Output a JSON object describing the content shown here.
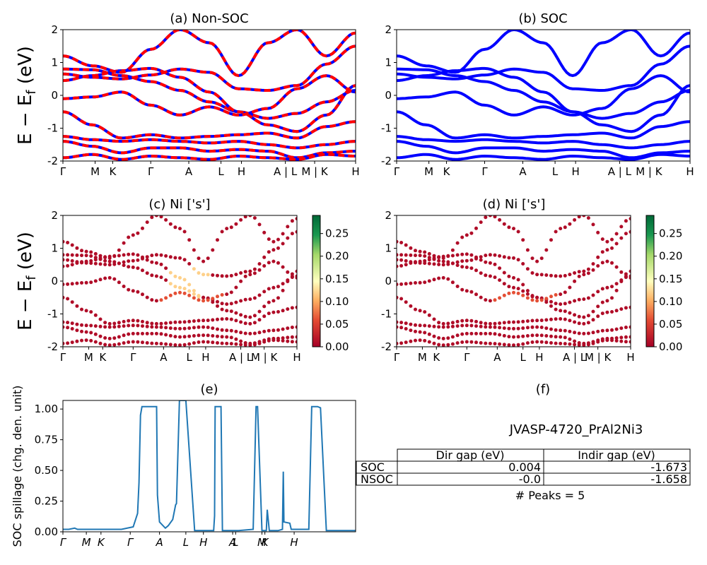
{
  "chart_data": [
    {
      "id": "a",
      "type": "line",
      "title": "(a) Non-SOC",
      "ylabel": "E − E_f (eV)",
      "ylim": [
        -2,
        2
      ],
      "yticks": [
        -2,
        -1,
        0,
        1,
        2
      ],
      "kpath_labels": [
        "Γ",
        "M",
        "K",
        "Γ",
        "A",
        "L",
        "H",
        "A | L",
        "M | K",
        "H"
      ],
      "colors": {
        "spin_up": "#0000ff",
        "spin_down": "#ff0000"
      },
      "series": [
        {
          "name": "band-1",
          "x": [
            0,
            0.1,
            0.2,
            0.3,
            0.4,
            0.5,
            0.6,
            0.7,
            0.8,
            0.9,
            1.0
          ],
          "y": [
            0.8,
            0.78,
            0.6,
            0.42,
            0.15,
            -0.2,
            -0.5,
            -0.7,
            -0.55,
            -0.2,
            0.15
          ]
        },
        {
          "name": "band-2",
          "x": [
            0,
            0.1,
            0.2,
            0.3,
            0.4,
            0.5,
            0.6,
            0.7,
            0.8,
            0.9,
            1.0
          ],
          "y": [
            0.45,
            0.6,
            0.75,
            0.82,
            0.55,
            0.1,
            -0.5,
            -0.9,
            -1.1,
            -0.6,
            0.3
          ]
        },
        {
          "name": "band-3",
          "x": [
            0,
            0.1,
            0.2,
            0.3,
            0.4,
            0.5,
            0.6,
            0.7,
            0.8,
            0.9,
            1.0
          ],
          "y": [
            -0.5,
            -0.9,
            -1.3,
            -1.2,
            -1.3,
            -1.25,
            -1.2,
            -1.15,
            -1.3,
            -0.95,
            -0.8
          ]
        },
        {
          "name": "band-4",
          "x": [
            0,
            0.1,
            0.2,
            0.3,
            0.4,
            0.5,
            0.6,
            0.7,
            0.8,
            0.9,
            1.0
          ],
          "y": [
            -1.25,
            -1.35,
            -1.4,
            -1.35,
            -1.4,
            -1.45,
            -1.4,
            -1.5,
            -1.6,
            -1.5,
            -1.4
          ]
        },
        {
          "name": "band-5",
          "x": [
            0,
            0.1,
            0.2,
            0.3,
            0.4,
            0.5,
            0.6,
            0.7,
            0.8,
            0.9,
            1.0
          ],
          "y": [
            -1.4,
            -1.55,
            -1.75,
            -1.6,
            -1.6,
            -1.7,
            -1.65,
            -1.7,
            -1.9,
            -1.75,
            -1.7
          ]
        },
        {
          "name": "band-6",
          "x": [
            0,
            0.1,
            0.2,
            0.3,
            0.4,
            0.5,
            0.6,
            0.7,
            0.8,
            0.9,
            1.0
          ],
          "y": [
            -1.9,
            -1.8,
            -1.95,
            -1.85,
            -1.9,
            -1.95,
            -1.85,
            -1.9,
            -1.95,
            -1.8,
            -1.85
          ]
        },
        {
          "name": "band-7",
          "x": [
            0,
            0.1,
            0.2,
            0.3,
            0.4,
            0.5,
            0.6,
            0.7,
            0.8,
            0.9,
            1.0
          ],
          "y": [
            1.2,
            0.9,
            0.7,
            1.4,
            2.0,
            1.6,
            0.6,
            1.6,
            2.0,
            1.2,
            1.9
          ]
        },
        {
          "name": "band-8",
          "x": [
            0,
            0.1,
            0.2,
            0.3,
            0.4,
            0.5,
            0.6,
            0.7,
            0.8,
            0.9,
            1.0
          ],
          "y": [
            0.65,
            0.55,
            0.5,
            0.62,
            0.8,
            0.7,
            0.2,
            0.15,
            0.3,
            0.95,
            1.5
          ]
        },
        {
          "name": "band-9",
          "x": [
            0,
            0.1,
            0.2,
            0.3,
            0.4,
            0.5,
            0.6,
            0.7,
            0.8,
            0.9,
            1.0
          ],
          "y": [
            -0.1,
            -0.05,
            0.1,
            -0.3,
            -0.6,
            -0.35,
            -0.6,
            -0.4,
            0.2,
            0.6,
            0.1
          ]
        }
      ]
    },
    {
      "id": "b",
      "type": "line",
      "title": "(b) SOC",
      "ylim": [
        -2,
        2
      ],
      "yticks": [
        -2,
        -1,
        0,
        1,
        2
      ],
      "kpath_labels": [
        "Γ",
        "M",
        "K",
        "Γ",
        "A",
        "L",
        "H",
        "A | L",
        "M | K",
        "H"
      ],
      "color": "#0000ff",
      "series_ref": "a"
    },
    {
      "id": "c",
      "type": "scatter",
      "title": "(c)  Ni ['s']",
      "ylabel": "E − E_f (eV)",
      "ylim": [
        -2,
        2
      ],
      "yticks": [
        -2,
        -1,
        0,
        1,
        2
      ],
      "kpath_labels": [
        "Γ",
        "M",
        "K",
        "Γ",
        "A",
        "L",
        "H",
        "A | L",
        "M | K",
        "H"
      ],
      "colorbar": {
        "min": 0.0,
        "max": 0.29,
        "ticks": [
          "0.00",
          "0.05",
          "0.10",
          "0.15",
          "0.20",
          "0.25"
        ],
        "colormap": "RdYlGn"
      },
      "series_ref": "a",
      "highlight": [
        {
          "x_from": 0.45,
          "x_to": 0.62,
          "value": 0.12
        }
      ]
    },
    {
      "id": "d",
      "type": "scatter",
      "title": "(d) Ni ['s']",
      "ylim": [
        -2,
        2
      ],
      "yticks": [
        -2,
        -1,
        0,
        1,
        2
      ],
      "kpath_labels": [
        "Γ",
        "M",
        "K",
        "Γ",
        "A",
        "L",
        "H",
        "A | L",
        "M | K",
        "H"
      ],
      "colorbar": {
        "min": 0.0,
        "max": 0.29,
        "ticks": [
          "0.00",
          "0.05",
          "0.10",
          "0.15",
          "0.20",
          "0.25"
        ],
        "colormap": "RdYlGn"
      },
      "series_ref": "a"
    },
    {
      "id": "e",
      "type": "line",
      "title": "(e)",
      "ylabel": "SOC spillage (chg. den. unit)",
      "ylim": [
        0,
        1.07
      ],
      "yticks": [
        "0.00",
        "0.25",
        "0.50",
        "0.75",
        "1.00"
      ],
      "kpath_labels": [
        "Γ",
        "M",
        "K",
        "Γ",
        "A",
        "L",
        "H",
        "A",
        "L",
        "M",
        "K",
        "H"
      ],
      "color": "#1f77b4",
      "x": [
        0,
        0.02,
        0.04,
        0.05,
        0.07,
        0.1,
        0.15,
        0.2,
        0.24,
        0.255,
        0.26,
        0.265,
        0.27,
        0.272,
        0.28,
        0.29,
        0.3,
        0.32,
        0.323,
        0.33,
        0.35,
        0.36,
        0.375,
        0.385,
        0.388,
        0.398,
        0.42,
        0.45,
        0.5,
        0.515,
        0.518,
        0.52,
        0.54,
        0.545,
        0.55,
        0.6,
        0.65,
        0.66,
        0.665,
        0.68,
        0.695,
        0.698,
        0.705,
        0.735,
        0.75,
        0.753,
        0.755,
        0.775,
        0.78,
        0.84,
        0.85,
        0.87,
        0.88,
        0.9,
        0.94,
        0.97,
        0.98,
        1.0
      ],
      "y": [
        0.02,
        0.02,
        0.03,
        0.02,
        0.02,
        0.02,
        0.02,
        0.02,
        0.04,
        0.15,
        0.4,
        0.95,
        1.02,
        1.02,
        1.02,
        1.02,
        1.02,
        1.02,
        0.3,
        0.08,
        0.03,
        0.05,
        0.1,
        0.22,
        0.23,
        1.07,
        1.07,
        0.01,
        0.01,
        0.01,
        0.13,
        1.02,
        1.02,
        0.01,
        0.01,
        0.01,
        0.02,
        1.02,
        1.02,
        0.01,
        0.01,
        0.18,
        0.01,
        0.01,
        0.02,
        0.49,
        0.08,
        0.07,
        0.02,
        0.02,
        1.02,
        1.02,
        1.01,
        0.01,
        0.01,
        0.01,
        0.01,
        0.01
      ],
      "x_scale_note": ""
    }
  ],
  "table_panel": {
    "title": "(f)",
    "material": "JVASP-4720_PrAl2Ni3",
    "headers": [
      "",
      "Dir gap (eV)",
      "Indir gap (eV)"
    ],
    "rows": [
      [
        "SOC",
        "0.004",
        "-1.673"
      ],
      [
        "NSOC",
        "-0.0",
        "-1.658"
      ]
    ],
    "peaks": "# Peaks = 5"
  }
}
